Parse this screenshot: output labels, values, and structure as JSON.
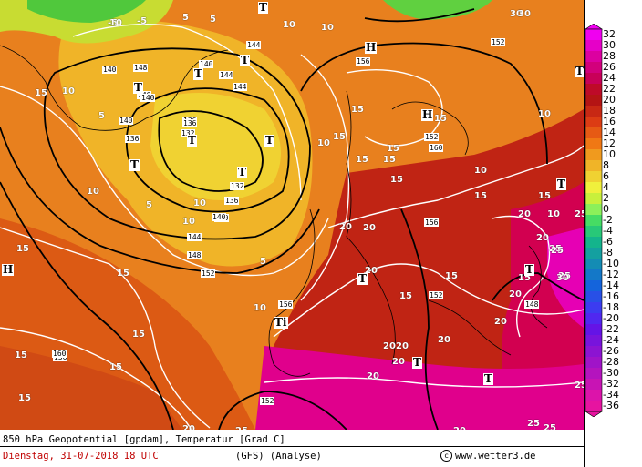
{
  "map": {
    "title": "850 hPa Geopotential [gpdam], Temperatur [Grad C]",
    "date_line": "Dienstag, 31-07-2018  18 UTC",
    "model_line": "(GFS)  (Analyse)",
    "copyright": "www.wetter3.de",
    "copyright_symbol": "c",
    "temp_labels": [
      "-5",
      "-5",
      "5",
      "5",
      "5",
      "5",
      "5",
      "10",
      "10",
      "10",
      "10",
      "10",
      "10",
      "10",
      "10",
      "10",
      "10",
      "10",
      "10",
      "15",
      "15",
      "15",
      "15",
      "15",
      "15",
      "15",
      "15",
      "15",
      "15",
      "15",
      "15",
      "15",
      "15",
      "15",
      "15",
      "15",
      "15",
      "15",
      "20",
      "20",
      "20",
      "20",
      "20",
      "20",
      "20",
      "20",
      "20",
      "20",
      "20",
      "20",
      "20",
      "20",
      "25",
      "25",
      "25",
      "25",
      "25",
      "25",
      "25",
      "25",
      "30",
      "30",
      "30"
    ],
    "geopot_labels": [
      "136",
      "140",
      "140",
      "140",
      "140",
      "140",
      "136",
      "132",
      "132",
      "136",
      "140",
      "144",
      "144",
      "144",
      "144",
      "148",
      "152",
      "152",
      "152",
      "156",
      "156",
      "156",
      "156",
      "160",
      "160",
      "152",
      "148",
      "148",
      "152",
      "140",
      "136"
    ],
    "pressure_centers": [
      "T",
      "T",
      "T",
      "T",
      "T",
      "T",
      "T",
      "T",
      "T",
      "T",
      "T",
      "T",
      "T",
      "T",
      "H",
      "H",
      "H",
      "Ti"
    ]
  },
  "legend": {
    "labels": [
      "32",
      "30",
      "28",
      "26",
      "24",
      "22",
      "20",
      "18",
      "16",
      "14",
      "12",
      "10",
      "8",
      "6",
      "4",
      "2",
      "0",
      "-2",
      "-4",
      "-6",
      "-8",
      "-10",
      "-12",
      "-14",
      "-16",
      "-18",
      "-20",
      "-22",
      "-24",
      "-26",
      "-28",
      "-30",
      "-32",
      "-34",
      "-36"
    ],
    "colors": [
      "#f000f0",
      "#e600c8",
      "#dc00a0",
      "#d2007c",
      "#c80058",
      "#be0a28",
      "#b41414",
      "#c82814",
      "#dc3c14",
      "#e65a14",
      "#f07814",
      "#f09a1e",
      "#f0b428",
      "#f0d232",
      "#f0f03c",
      "#c8f03c",
      "#8cf05a",
      "#46dc64",
      "#28c878",
      "#14b48c",
      "#14a0a0",
      "#148cb4",
      "#1478c8",
      "#1464dc",
      "#2850e6",
      "#3c3cf0",
      "#5028f0",
      "#6414e6",
      "#7814dc",
      "#8c14d2",
      "#a014c8",
      "#b414be",
      "#c814b4",
      "#dc14aa",
      "#e614a0"
    ]
  }
}
